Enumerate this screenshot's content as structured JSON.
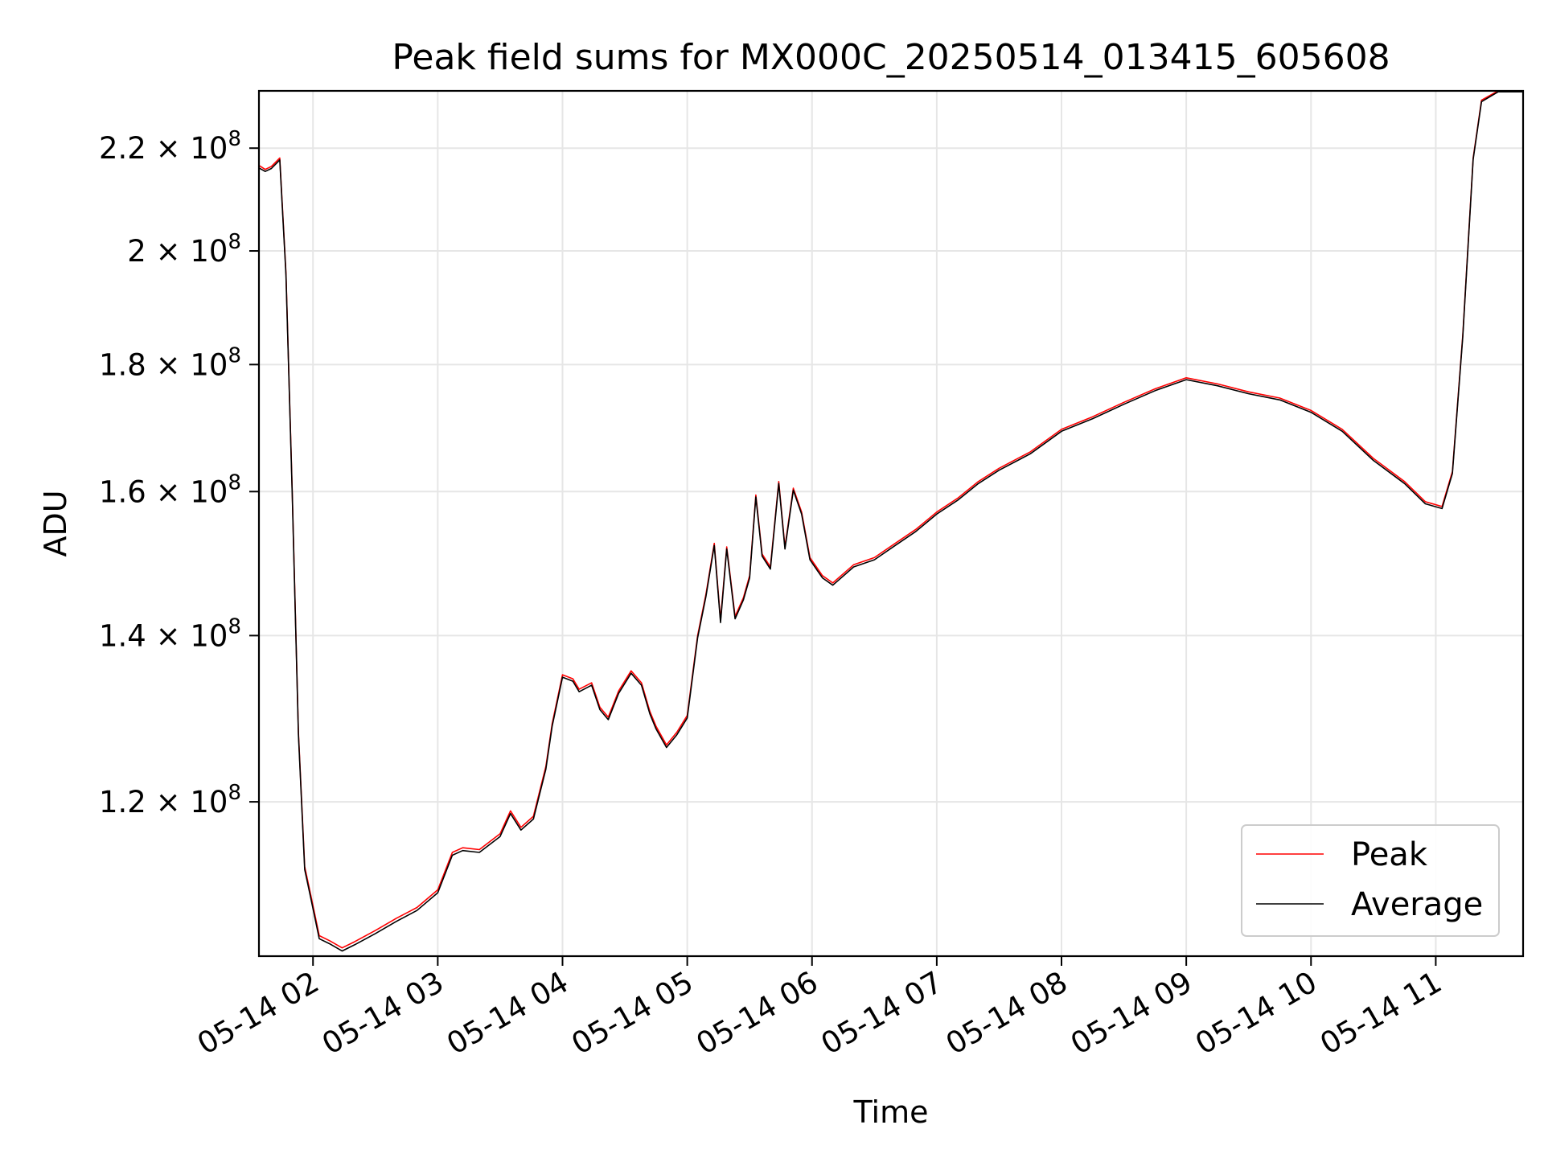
{
  "chart_data": {
    "type": "line",
    "title": "Peak field sums for MX000C_20250514_013415_605608",
    "xlabel": "Time",
    "ylabel": "ADU",
    "y_scale": "log",
    "grid": true,
    "legend_position": "lower-right",
    "xlim": [
      "2025-05-14 01:34",
      "2025-05-14 11:42"
    ],
    "ylim": [
      104000000,
      232000000
    ],
    "x_ticks": [
      {
        "t": "2025-05-14 02:00",
        "label": "05-14 02"
      },
      {
        "t": "2025-05-14 03:00",
        "label": "05-14 03"
      },
      {
        "t": "2025-05-14 04:00",
        "label": "05-14 04"
      },
      {
        "t": "2025-05-14 05:00",
        "label": "05-14 05"
      },
      {
        "t": "2025-05-14 06:00",
        "label": "05-14 06"
      },
      {
        "t": "2025-05-14 07:00",
        "label": "05-14 07"
      },
      {
        "t": "2025-05-14 08:00",
        "label": "05-14 08"
      },
      {
        "t": "2025-05-14 09:00",
        "label": "05-14 09"
      },
      {
        "t": "2025-05-14 10:00",
        "label": "05-14 10"
      },
      {
        "t": "2025-05-14 11:00",
        "label": "05-14 11"
      }
    ],
    "y_ticks": [
      {
        "value": 120000000,
        "mantissa": "1.2",
        "exponent": "8"
      },
      {
        "value": 140000000,
        "mantissa": "1.4",
        "exponent": "8"
      },
      {
        "value": 160000000,
        "mantissa": "1.6",
        "exponent": "8"
      },
      {
        "value": 180000000,
        "mantissa": "1.8",
        "exponent": "8"
      },
      {
        "value": 200000000,
        "mantissa": "2",
        "exponent": "8"
      },
      {
        "value": 220000000,
        "mantissa": "2.2",
        "exponent": "8"
      }
    ],
    "tick_times_text": "× 10",
    "series": [
      {
        "name": "Peak",
        "color": "#ff0000",
        "points": [
          [
            "2025-05-14 01:34",
            216500000
          ],
          [
            "2025-05-14 01:37",
            215700000
          ],
          [
            "2025-05-14 01:40",
            216300000
          ],
          [
            "2025-05-14 01:44",
            218000000
          ],
          [
            "2025-05-14 01:47",
            196000000
          ],
          [
            "2025-05-14 01:50",
            160000000
          ],
          [
            "2025-05-14 01:53",
            128000000
          ],
          [
            "2025-05-14 01:56",
            113000000
          ],
          [
            "2025-05-14 01:59",
            110000000
          ],
          [
            "2025-05-14 02:03",
            106000000
          ],
          [
            "2025-05-14 02:08",
            105500000
          ],
          [
            "2025-05-14 02:14",
            104800000
          ],
          [
            "2025-05-14 02:20",
            105400000
          ],
          [
            "2025-05-14 02:30",
            106500000
          ],
          [
            "2025-05-14 02:40",
            107700000
          ],
          [
            "2025-05-14 02:50",
            108800000
          ],
          [
            "2025-05-14 03:00",
            110600000
          ],
          [
            "2025-05-14 03:07",
            114500000
          ],
          [
            "2025-05-14 03:12",
            115000000
          ],
          [
            "2025-05-14 03:20",
            114800000
          ],
          [
            "2025-05-14 03:30",
            116500000
          ],
          [
            "2025-05-14 03:35",
            119000000
          ],
          [
            "2025-05-14 03:40",
            117200000
          ],
          [
            "2025-05-14 03:46",
            118400000
          ],
          [
            "2025-05-14 03:52",
            124000000
          ],
          [
            "2025-05-14 03:55",
            129000000
          ],
          [
            "2025-05-14 04:00",
            135000000
          ],
          [
            "2025-05-14 04:05",
            134500000
          ],
          [
            "2025-05-14 04:08",
            133200000
          ],
          [
            "2025-05-14 04:14",
            134000000
          ],
          [
            "2025-05-14 04:18",
            131000000
          ],
          [
            "2025-05-14 04:22",
            129800000
          ],
          [
            "2025-05-14 04:27",
            133000000
          ],
          [
            "2025-05-14 04:33",
            135500000
          ],
          [
            "2025-05-14 04:38",
            134000000
          ],
          [
            "2025-05-14 04:42",
            130500000
          ],
          [
            "2025-05-14 04:45",
            128700000
          ],
          [
            "2025-05-14 04:50",
            126500000
          ],
          [
            "2025-05-14 04:55",
            128000000
          ],
          [
            "2025-05-14 05:00",
            130000000
          ],
          [
            "2025-05-14 05:05",
            140000000
          ],
          [
            "2025-05-14 05:09",
            145500000
          ],
          [
            "2025-05-14 05:13",
            152500000
          ],
          [
            "2025-05-14 05:16",
            142000000
          ],
          [
            "2025-05-14 05:19",
            152000000
          ],
          [
            "2025-05-14 05:23",
            142500000
          ],
          [
            "2025-05-14 05:27",
            145000000
          ],
          [
            "2025-05-14 05:30",
            148000000
          ],
          [
            "2025-05-14 05:33",
            159500000
          ],
          [
            "2025-05-14 05:36",
            151000000
          ],
          [
            "2025-05-14 05:40",
            149200000
          ],
          [
            "2025-05-14 05:44",
            161500000
          ],
          [
            "2025-05-14 05:47",
            152000000
          ],
          [
            "2025-05-14 05:51",
            160500000
          ],
          [
            "2025-05-14 05:55",
            157000000
          ],
          [
            "2025-05-14 05:59",
            150500000
          ],
          [
            "2025-05-14 06:05",
            148000000
          ],
          [
            "2025-05-14 06:10",
            147000000
          ],
          [
            "2025-05-14 06:20",
            149500000
          ],
          [
            "2025-05-14 06:30",
            150500000
          ],
          [
            "2025-05-14 06:40",
            152500000
          ],
          [
            "2025-05-14 06:50",
            154500000
          ],
          [
            "2025-05-14 07:00",
            157000000
          ],
          [
            "2025-05-14 07:10",
            159000000
          ],
          [
            "2025-05-14 07:20",
            161500000
          ],
          [
            "2025-05-14 07:30",
            163500000
          ],
          [
            "2025-05-14 07:45",
            166000000
          ],
          [
            "2025-05-14 08:00",
            169500000
          ],
          [
            "2025-05-14 08:15",
            171500000
          ],
          [
            "2025-05-14 08:30",
            173800000
          ],
          [
            "2025-05-14 08:45",
            176000000
          ],
          [
            "2025-05-14 09:00",
            177800000
          ],
          [
            "2025-05-14 09:15",
            176800000
          ],
          [
            "2025-05-14 09:30",
            175500000
          ],
          [
            "2025-05-14 09:45",
            174500000
          ],
          [
            "2025-05-14 10:00",
            172500000
          ],
          [
            "2025-05-14 10:15",
            169500000
          ],
          [
            "2025-05-14 10:30",
            165000000
          ],
          [
            "2025-05-14 10:45",
            161500000
          ],
          [
            "2025-05-14 10:55",
            158500000
          ],
          [
            "2025-05-14 11:03",
            157800000
          ],
          [
            "2025-05-14 11:08",
            163000000
          ],
          [
            "2025-05-14 11:13",
            185000000
          ],
          [
            "2025-05-14 11:18",
            218000000
          ],
          [
            "2025-05-14 11:22",
            230000000
          ],
          [
            "2025-05-14 11:30",
            232000000
          ],
          [
            "2025-05-14 11:42",
            232000000
          ]
        ]
      },
      {
        "name": "Average",
        "color": "#000000",
        "points": [
          [
            "2025-05-14 01:34",
            216000000
          ],
          [
            "2025-05-14 01:37",
            215300000
          ],
          [
            "2025-05-14 01:40",
            215900000
          ],
          [
            "2025-05-14 01:44",
            217600000
          ],
          [
            "2025-05-14 01:47",
            195600000
          ],
          [
            "2025-05-14 01:50",
            159600000
          ],
          [
            "2025-05-14 01:53",
            127700000
          ],
          [
            "2025-05-14 01:56",
            112700000
          ],
          [
            "2025-05-14 01:59",
            109700000
          ],
          [
            "2025-05-14 02:03",
            105700000
          ],
          [
            "2025-05-14 02:08",
            105200000
          ],
          [
            "2025-05-14 02:14",
            104500000
          ],
          [
            "2025-05-14 02:20",
            105100000
          ],
          [
            "2025-05-14 02:30",
            106200000
          ],
          [
            "2025-05-14 02:40",
            107400000
          ],
          [
            "2025-05-14 02:50",
            108500000
          ],
          [
            "2025-05-14 03:00",
            110300000
          ],
          [
            "2025-05-14 03:07",
            114200000
          ],
          [
            "2025-05-14 03:12",
            114700000
          ],
          [
            "2025-05-14 03:20",
            114500000
          ],
          [
            "2025-05-14 03:30",
            116200000
          ],
          [
            "2025-05-14 03:35",
            118700000
          ],
          [
            "2025-05-14 03:40",
            116900000
          ],
          [
            "2025-05-14 03:46",
            118100000
          ],
          [
            "2025-05-14 03:52",
            123700000
          ],
          [
            "2025-05-14 03:55",
            128700000
          ],
          [
            "2025-05-14 04:00",
            134700000
          ],
          [
            "2025-05-14 04:05",
            134200000
          ],
          [
            "2025-05-14 04:08",
            132900000
          ],
          [
            "2025-05-14 04:14",
            133700000
          ],
          [
            "2025-05-14 04:18",
            130700000
          ],
          [
            "2025-05-14 04:22",
            129500000
          ],
          [
            "2025-05-14 04:27",
            132700000
          ],
          [
            "2025-05-14 04:33",
            135200000
          ],
          [
            "2025-05-14 04:38",
            133700000
          ],
          [
            "2025-05-14 04:42",
            130200000
          ],
          [
            "2025-05-14 04:45",
            128400000
          ],
          [
            "2025-05-14 04:50",
            126200000
          ],
          [
            "2025-05-14 04:55",
            127700000
          ],
          [
            "2025-05-14 05:00",
            129700000
          ],
          [
            "2025-05-14 05:05",
            139700000
          ],
          [
            "2025-05-14 05:09",
            145200000
          ],
          [
            "2025-05-14 05:13",
            152200000
          ],
          [
            "2025-05-14 05:16",
            141700000
          ],
          [
            "2025-05-14 05:19",
            151700000
          ],
          [
            "2025-05-14 05:23",
            142200000
          ],
          [
            "2025-05-14 05:27",
            144700000
          ],
          [
            "2025-05-14 05:30",
            147700000
          ],
          [
            "2025-05-14 05:33",
            159200000
          ],
          [
            "2025-05-14 05:36",
            150700000
          ],
          [
            "2025-05-14 05:40",
            148900000
          ],
          [
            "2025-05-14 05:44",
            161200000
          ],
          [
            "2025-05-14 05:47",
            151700000
          ],
          [
            "2025-05-14 05:51",
            160200000
          ],
          [
            "2025-05-14 05:55",
            156700000
          ],
          [
            "2025-05-14 05:59",
            150200000
          ],
          [
            "2025-05-14 06:05",
            147700000
          ],
          [
            "2025-05-14 06:10",
            146700000
          ],
          [
            "2025-05-14 06:20",
            149200000
          ],
          [
            "2025-05-14 06:30",
            150200000
          ],
          [
            "2025-05-14 06:40",
            152200000
          ],
          [
            "2025-05-14 06:50",
            154200000
          ],
          [
            "2025-05-14 07:00",
            156700000
          ],
          [
            "2025-05-14 07:10",
            158700000
          ],
          [
            "2025-05-14 07:20",
            161200000
          ],
          [
            "2025-05-14 07:30",
            163200000
          ],
          [
            "2025-05-14 07:45",
            165700000
          ],
          [
            "2025-05-14 08:00",
            169200000
          ],
          [
            "2025-05-14 08:15",
            171200000
          ],
          [
            "2025-05-14 08:30",
            173500000
          ],
          [
            "2025-05-14 08:45",
            175700000
          ],
          [
            "2025-05-14 09:00",
            177500000
          ],
          [
            "2025-05-14 09:15",
            176500000
          ],
          [
            "2025-05-14 09:30",
            175200000
          ],
          [
            "2025-05-14 09:45",
            174200000
          ],
          [
            "2025-05-14 10:00",
            172200000
          ],
          [
            "2025-05-14 10:15",
            169200000
          ],
          [
            "2025-05-14 10:30",
            164700000
          ],
          [
            "2025-05-14 10:45",
            161200000
          ],
          [
            "2025-05-14 10:55",
            158200000
          ],
          [
            "2025-05-14 11:03",
            157500000
          ],
          [
            "2025-05-14 11:08",
            162700000
          ],
          [
            "2025-05-14 11:13",
            184700000
          ],
          [
            "2025-05-14 11:18",
            217700000
          ],
          [
            "2025-05-14 11:22",
            229700000
          ],
          [
            "2025-05-14 11:30",
            231800000
          ],
          [
            "2025-05-14 11:42",
            231800000
          ]
        ]
      }
    ],
    "colors": {
      "grid": "#e6e6e6",
      "axes": "#000000",
      "legend_border": "#cccccc"
    }
  }
}
